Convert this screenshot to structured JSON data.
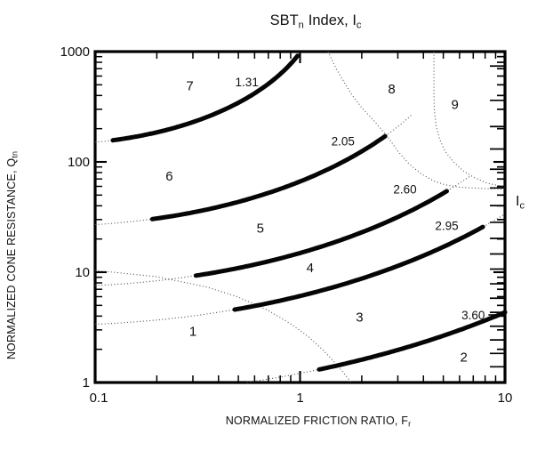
{
  "title": {
    "p1": "SBT",
    "sub1": "n",
    "p2": "Index, I",
    "sub2": "c"
  },
  "x_axis": {
    "label": "NORMALIZED FRICTION RATIO, F",
    "label_sub": "r",
    "scale": "log",
    "range": [
      0.1,
      10
    ],
    "tick_values": [
      0.1,
      1,
      10
    ],
    "tick_labels": [
      "0.1",
      "1",
      "10"
    ]
  },
  "y_axis": {
    "label": "NORMALIZED CONE RESISTANCE, Q",
    "label_sub": "tn",
    "scale": "log",
    "range": [
      1,
      1000
    ],
    "tick_values": [
      1,
      10,
      100,
      1000
    ],
    "tick_labels": [
      "1",
      "10",
      "100",
      "1000"
    ]
  },
  "right_axis": {
    "label": "I",
    "label_sub": "c"
  },
  "chart_data": {
    "type": "line",
    "title": "SBTn Index, Ic",
    "xlabel": "NORMALIZED FRICTION RATIO, Fr",
    "ylabel": "NORMALIZED CONE RESISTANCE, Qtn",
    "xlim": [
      0.1,
      10
    ],
    "ylim": [
      1,
      1000
    ],
    "xscale": "log",
    "yscale": "log",
    "grid": false,
    "ic_circle_center_logF": -1.22,
    "ic_circle_center_logQ": 3.47,
    "contours": [
      {
        "ic": 1.31,
        "label": "1.31",
        "thick_fr": [
          0.122,
          0.97
        ],
        "dotted_fr": [
          0.1,
          1.0
        ],
        "label_fr": 0.55,
        "label_q": 530
      },
      {
        "ic": 2.05,
        "label": "2.05",
        "thick_fr": [
          0.19,
          2.6
        ],
        "dotted_fr": [
          0.1,
          3.5
        ],
        "label_fr": 1.62,
        "label_q": 155
      },
      {
        "ic": 2.6,
        "label": "2.60",
        "thick_fr": [
          0.31,
          5.2
        ],
        "dotted_fr": [
          0.1,
          6.8
        ],
        "label_fr": 3.25,
        "label_q": 57
      },
      {
        "ic": 2.95,
        "label": "2.95",
        "thick_fr": [
          0.48,
          7.8
        ],
        "dotted_fr": [
          0.1,
          10
        ],
        "label_fr": 5.2,
        "label_q": 26.5
      },
      {
        "ic": 3.6,
        "label": "3.60",
        "thick_fr": [
          1.24,
          10
        ],
        "dotted_fr": [
          0.55,
          10
        ],
        "label_fr": 7.0,
        "label_q": 4.1,
        "leader": true
      }
    ],
    "zones": [
      {
        "zone": "1",
        "fr": 0.3,
        "q": 2.9
      },
      {
        "zone": "2",
        "fr": 6.3,
        "q": 1.7
      },
      {
        "zone": "3",
        "fr": 1.95,
        "q": 3.9
      },
      {
        "zone": "4",
        "fr": 1.12,
        "q": 11
      },
      {
        "zone": "5",
        "fr": 0.64,
        "q": 25
      },
      {
        "zone": "6",
        "fr": 0.23,
        "q": 74
      },
      {
        "zone": "7",
        "fr": 0.29,
        "q": 490
      },
      {
        "zone": "8",
        "fr": 2.8,
        "q": 460
      },
      {
        "zone": "9",
        "fr": 5.7,
        "q": 330
      }
    ],
    "zone_boundaries": [
      {
        "name": "zone-1-boundary",
        "points": [
          [
            0.1,
            10.4
          ],
          [
            0.2,
            9.1
          ],
          [
            0.35,
            7.35
          ],
          [
            0.5,
            5.95
          ],
          [
            0.7,
            4.5
          ],
          [
            0.9,
            3.4
          ],
          [
            1.1,
            2.6
          ],
          [
            1.3,
            1.95
          ],
          [
            1.5,
            1.47
          ],
          [
            1.65,
            1.19
          ],
          [
            1.78,
            1.0
          ]
        ]
      },
      {
        "name": "zone-8-lower-boundary",
        "points": [
          [
            1.37,
            1000
          ],
          [
            1.5,
            700
          ],
          [
            1.65,
            520
          ],
          [
            1.8,
            400
          ],
          [
            2.0,
            310
          ],
          [
            2.33,
            228
          ],
          [
            2.7,
            165
          ],
          [
            3.0,
            125
          ],
          [
            3.4,
            96
          ],
          [
            3.9,
            78
          ],
          [
            4.5,
            67
          ],
          [
            5.1,
            62
          ],
          [
            6.0,
            59
          ],
          [
            7.0,
            58
          ],
          [
            8.5,
            57
          ],
          [
            10,
            57
          ]
        ]
      },
      {
        "name": "zone-8-9-boundary",
        "points": [
          [
            4.5,
            1000
          ],
          [
            4.5,
            400
          ],
          [
            4.52,
            300
          ],
          [
            4.6,
            215
          ],
          [
            4.8,
            160
          ],
          [
            5.1,
            125
          ],
          [
            5.6,
            100
          ],
          [
            6.3,
            82
          ],
          [
            7.1,
            72
          ],
          [
            8.2,
            64
          ],
          [
            9.3,
            61
          ],
          [
            10,
            60
          ]
        ]
      }
    ],
    "right_ic_ticks": [
      2.3,
      2.4,
      2.5,
      2.6,
      2.7,
      2.8,
      2.9,
      3.0,
      3.1,
      3.2,
      3.3,
      3.4,
      3.5,
      3.6,
      3.7,
      3.8,
      3.9,
      4.0
    ]
  },
  "style": {
    "background": "#ffffff",
    "frame_color": "#000000",
    "contour_color": "#050505",
    "dotted_color": "#4c4c4c",
    "text_color": "#101010"
  }
}
